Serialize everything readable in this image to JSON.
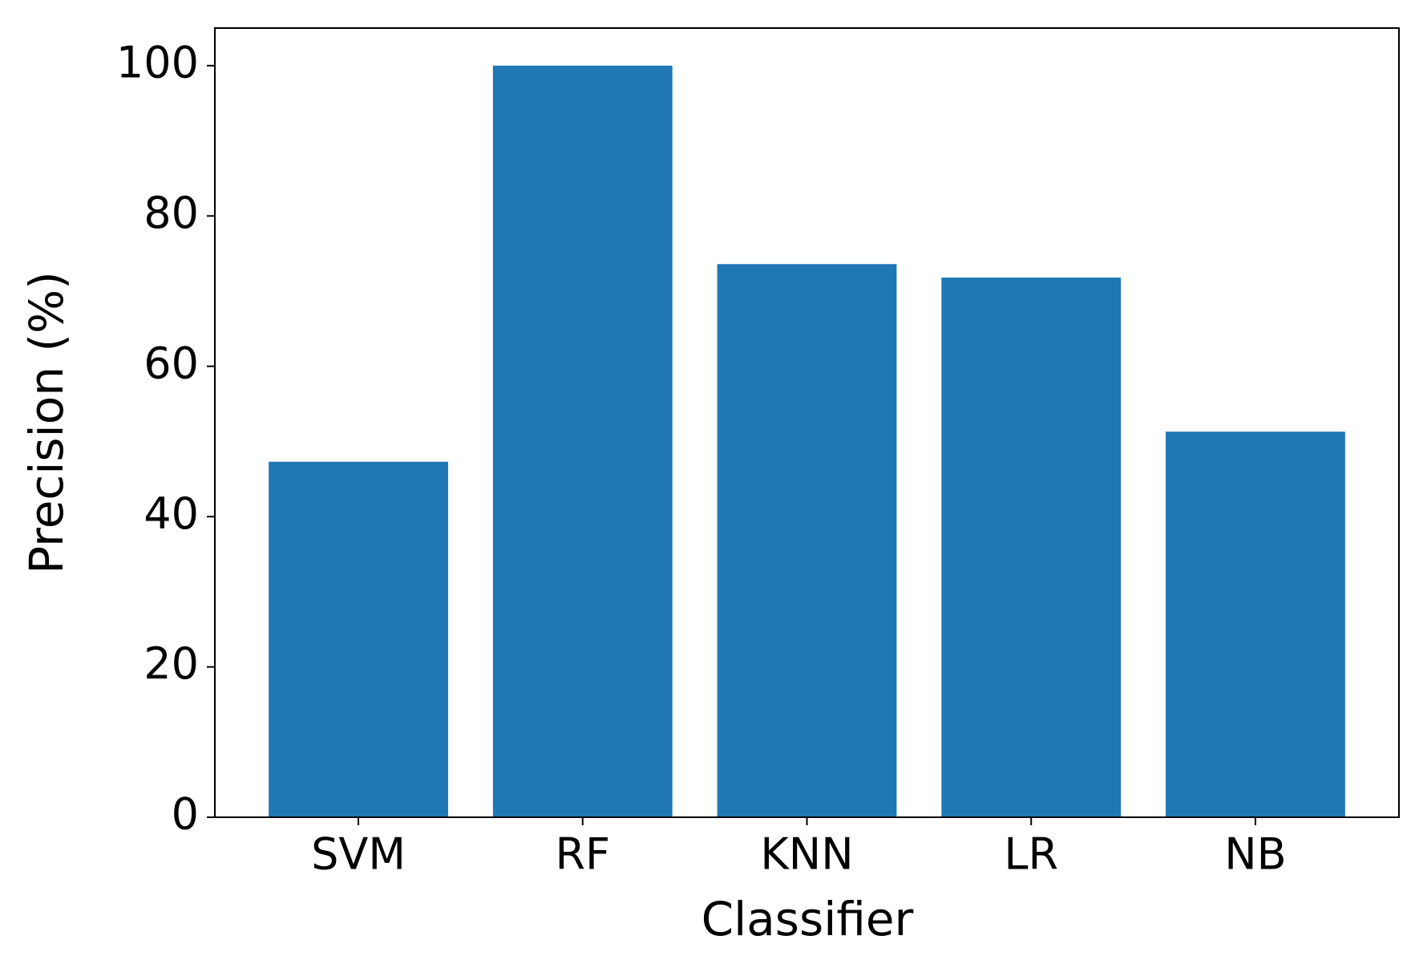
{
  "chart_data": {
    "type": "bar",
    "categories": [
      "SVM",
      "RF",
      "KNN",
      "LR",
      "NB"
    ],
    "values": [
      47.3,
      100,
      73.6,
      71.8,
      51.3
    ],
    "color": "#1f77b4",
    "xlabel": "Classifier",
    "ylabel": "Precision (%)",
    "ylim": [
      0,
      105
    ],
    "yticks": [
      0,
      20,
      40,
      60,
      80,
      100
    ],
    "grid": false
  }
}
